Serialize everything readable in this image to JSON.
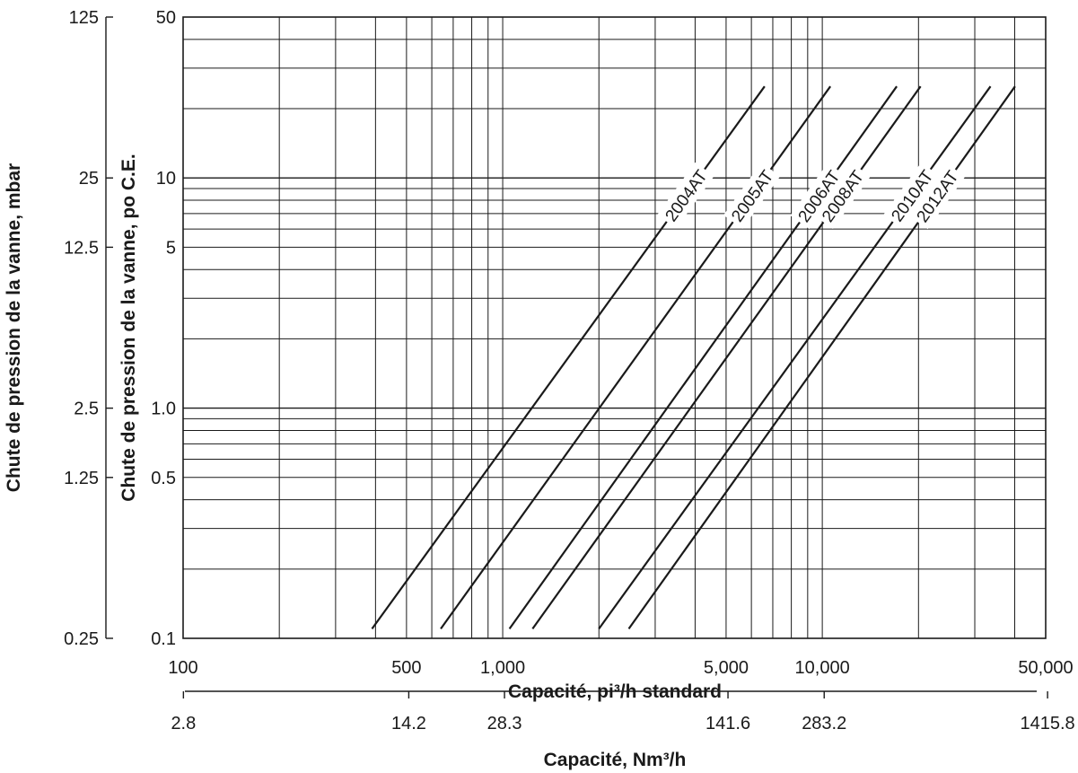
{
  "chart_data": {
    "type": "line",
    "title": "",
    "x_scale": "log",
    "y_scale": "log",
    "grid": true,
    "xlabel": "Capacité, pi³/h standard",
    "xlim": [
      100,
      50000
    ],
    "x_ticks": [
      {
        "value": 100,
        "label": "100"
      },
      {
        "value": 500,
        "label": "500"
      },
      {
        "value": 1000,
        "label": "1,000"
      },
      {
        "value": 5000,
        "label": "5,000"
      },
      {
        "value": 10000,
        "label": "10,000"
      },
      {
        "value": 50000,
        "label": "50,000"
      }
    ],
    "xlabel_secondary": "Capacité, Nm³/h",
    "x_secondary_ticks": [
      {
        "value": 2.8,
        "label": "2.8"
      },
      {
        "value": 14.2,
        "label": "14.2"
      },
      {
        "value": 28.3,
        "label": "28.3"
      },
      {
        "value": 141.6,
        "label": "141.6"
      },
      {
        "value": 283.2,
        "label": "283.2"
      },
      {
        "value": 1415.8,
        "label": "1415.8"
      }
    ],
    "ylabel": "Chute de pression de la vanne, po C.E.",
    "ylim": [
      0.1,
      50
    ],
    "y_ticks": [
      {
        "value": 0.1,
        "label": "0.1"
      },
      {
        "value": 0.5,
        "label": "0.5"
      },
      {
        "value": 1.0,
        "label": "1.0"
      },
      {
        "value": 5,
        "label": "5"
      },
      {
        "value": 10,
        "label": "10"
      },
      {
        "value": 50,
        "label": "50"
      }
    ],
    "ylabel_secondary": "Chute de pression de la vanne, mbar",
    "y_secondary_ticks": [
      {
        "value": 0.25,
        "label": "0.25"
      },
      {
        "value": 1.25,
        "label": "1.25"
      },
      {
        "value": 2.5,
        "label": "2.5"
      },
      {
        "value": 12.5,
        "label": "12.5"
      },
      {
        "value": 25,
        "label": "25"
      },
      {
        "value": 125,
        "label": "125"
      }
    ],
    "series": [
      {
        "name": "2004AT",
        "x": [
          390,
          6600
        ],
        "y": [
          0.11,
          25
        ]
      },
      {
        "name": "2005AT",
        "x": [
          640,
          10600
        ],
        "y": [
          0.11,
          25
        ]
      },
      {
        "name": "2006AT",
        "x": [
          1050,
          17100
        ],
        "y": [
          0.11,
          25
        ]
      },
      {
        "name": "2008AT",
        "x": [
          1240,
          20300
        ],
        "y": [
          0.11,
          25
        ]
      },
      {
        "name": "2010AT",
        "x": [
          2000,
          33600
        ],
        "y": [
          0.11,
          25
        ]
      },
      {
        "name": "2012AT",
        "x": [
          2480,
          40100
        ],
        "y": [
          0.11,
          25
        ]
      }
    ]
  }
}
